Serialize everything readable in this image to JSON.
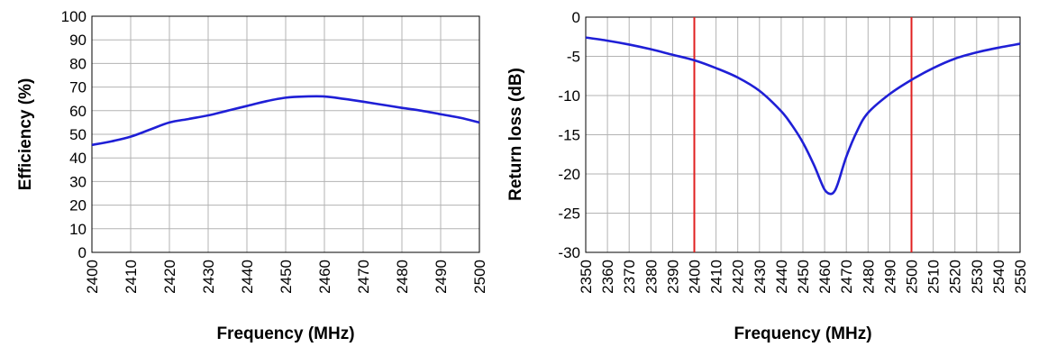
{
  "chart_data": [
    {
      "type": "line",
      "title": "",
      "xlabel": "Frequency (MHz)",
      "ylabel": "Efficiency (%)",
      "xlim": [
        2400,
        2500
      ],
      "ylim": [
        0,
        100
      ],
      "x_ticks": [
        2400,
        2410,
        2420,
        2430,
        2440,
        2450,
        2460,
        2470,
        2480,
        2490,
        2500
      ],
      "y_ticks": [
        0,
        10,
        20,
        30,
        40,
        50,
        60,
        70,
        80,
        90,
        100
      ],
      "grid": true,
      "legend": "none",
      "series_color": "#1f1fd6",
      "series": [
        {
          "x": [
            2400,
            2405,
            2410,
            2415,
            2420,
            2425,
            2430,
            2435,
            2440,
            2445,
            2450,
            2455,
            2460,
            2465,
            2470,
            2475,
            2480,
            2485,
            2490,
            2495,
            2500
          ],
          "y": [
            45.5,
            47,
            49,
            52,
            55,
            56.5,
            58,
            60,
            62,
            64,
            65.5,
            66,
            66,
            65,
            63.8,
            62.5,
            61.2,
            60,
            58.5,
            57,
            55
          ]
        }
      ]
    },
    {
      "type": "line",
      "title": "",
      "xlabel": "Frequency (MHz)",
      "ylabel": "Return loss (dB)",
      "xlim": [
        2350,
        2550
      ],
      "ylim": [
        -30,
        0
      ],
      "x_ticks": [
        2350,
        2360,
        2370,
        2380,
        2390,
        2400,
        2410,
        2420,
        2430,
        2440,
        2450,
        2460,
        2470,
        2480,
        2490,
        2500,
        2510,
        2520,
        2530,
        2540,
        2550
      ],
      "y_ticks": [
        -30,
        -25,
        -20,
        -15,
        -10,
        -5,
        0
      ],
      "grid": true,
      "legend": "none",
      "series_color": "#1f1fd6",
      "marker_color": "#e02020",
      "vertical_markers": [
        2400,
        2500
      ],
      "series": [
        {
          "x": [
            2350,
            2360,
            2370,
            2380,
            2390,
            2400,
            2410,
            2420,
            2430,
            2440,
            2445,
            2450,
            2455,
            2458,
            2460,
            2462,
            2464,
            2466,
            2470,
            2475,
            2480,
            2490,
            2500,
            2510,
            2520,
            2530,
            2540,
            2550
          ],
          "y": [
            -2.6,
            -3.0,
            -3.5,
            -4.1,
            -4.8,
            -5.5,
            -6.5,
            -7.7,
            -9.4,
            -12.0,
            -13.8,
            -16.0,
            -18.8,
            -20.8,
            -22.0,
            -22.5,
            -22.4,
            -21.3,
            -17.8,
            -14.5,
            -12.2,
            -9.8,
            -8.0,
            -6.5,
            -5.3,
            -4.5,
            -3.9,
            -3.4
          ]
        }
      ]
    }
  ]
}
